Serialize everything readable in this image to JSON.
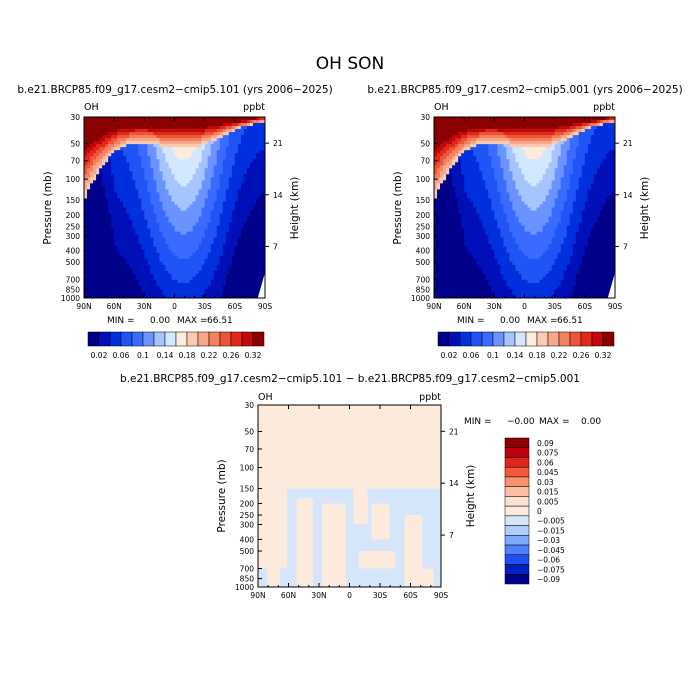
{
  "page_title": "OH SON",
  "colors": {
    "axis": "#000000",
    "deep_blue": "#00008B",
    "mid_blue": "#3A6BFF",
    "light_blue": "#CFE4FF",
    "neutral": "#FCEBDD",
    "light_red": "#F8B79C",
    "deep_red": "#8B0000"
  },
  "chart_data": [
    {
      "type": "heatmap",
      "id": "p1",
      "title": "b.e21.BRCP85.f09_g17.cesm2−cmip5.101 (yrs 2006−2025)",
      "variable_label": "OH",
      "units_label": "ppbt",
      "ylabel": "Pressure (mb)",
      "y2label": "Height (km)",
      "x_ticks": [
        "90N",
        "60N",
        "30N",
        "0",
        "30S",
        "60S",
        "90S"
      ],
      "x_range": [
        90,
        -90
      ],
      "y_ticks": [
        30,
        50,
        70,
        100,
        150,
        200,
        250,
        300,
        400,
        500,
        700,
        850,
        1000
      ],
      "y_range": [
        30,
        1000
      ],
      "y_scale": "log",
      "y2_ticks": [
        "21",
        "14",
        "7"
      ],
      "stats": {
        "min_label": "MIN =",
        "min_value": "0.00",
        "max_label": "MAX =",
        "max_value": "66.51"
      },
      "levels": [
        0.02,
        0.04,
        0.06,
        0.08,
        0.1,
        0.12,
        0.14,
        0.16,
        0.18,
        0.2,
        0.22,
        0.24,
        0.26,
        0.28,
        0.3,
        0.32
      ],
      "colorbar_labels": [
        "0.02",
        "0.06",
        "0.1",
        "0.14",
        "0.18",
        "0.22",
        "0.26",
        "0.32"
      ],
      "colors": [
        "#00008B",
        "#0010B8",
        "#0030DD",
        "#1F55F5",
        "#3A6BFF",
        "#6B93FF",
        "#A6C4FF",
        "#D3E7FF",
        "#FDEBDD",
        "#FBCAB2",
        "#F7A78A",
        "#F3805F",
        "#EC5638",
        "#E0291A",
        "#C4070B",
        "#8B0000"
      ]
    },
    {
      "type": "heatmap",
      "id": "p2",
      "title": "b.e21.BRCP85.f09_g17.cesm2−cmip5.001 (yrs 2006−2025)",
      "variable_label": "OH",
      "units_label": "ppbt",
      "ylabel": "Pressure (mb)",
      "y2label": "Height (km)",
      "x_ticks": [
        "90N",
        "60N",
        "30N",
        "0",
        "30S",
        "60S",
        "90S"
      ],
      "x_range": [
        90,
        -90
      ],
      "y_ticks": [
        30,
        50,
        70,
        100,
        150,
        200,
        250,
        300,
        400,
        500,
        700,
        850,
        1000
      ],
      "y_range": [
        30,
        1000
      ],
      "y_scale": "log",
      "y2_ticks": [
        "21",
        "14",
        "7"
      ],
      "stats": {
        "min_label": "MIN =",
        "min_value": "0.00",
        "max_label": "MAX =",
        "max_value": "66.51"
      },
      "levels": [
        0.02,
        0.04,
        0.06,
        0.08,
        0.1,
        0.12,
        0.14,
        0.16,
        0.18,
        0.2,
        0.22,
        0.24,
        0.26,
        0.28,
        0.3,
        0.32
      ],
      "colorbar_labels": [
        "0.02",
        "0.06",
        "0.1",
        "0.14",
        "0.18",
        "0.22",
        "0.26",
        "0.32"
      ],
      "colors": [
        "#00008B",
        "#0010B8",
        "#0030DD",
        "#1F55F5",
        "#3A6BFF",
        "#6B93FF",
        "#A6C4FF",
        "#D3E7FF",
        "#FDEBDD",
        "#FBCAB2",
        "#F7A78A",
        "#F3805F",
        "#EC5638",
        "#E0291A",
        "#C4070B",
        "#8B0000"
      ]
    },
    {
      "type": "heatmap",
      "id": "p3",
      "title": "b.e21.BRCP85.f09_g17.cesm2−cmip5.101 − b.e21.BRCP85.f09_g17.cesm2−cmip5.001",
      "variable_label": "OH",
      "units_label": "ppbt",
      "ylabel": "Pressure (mb)",
      "y2label": "Height (km)",
      "x_ticks": [
        "90N",
        "60N",
        "30N",
        "0",
        "30S",
        "60S",
        "90S"
      ],
      "x_range": [
        90,
        -90
      ],
      "y_ticks": [
        30,
        50,
        70,
        100,
        150,
        200,
        250,
        300,
        400,
        500,
        700,
        850,
        1000
      ],
      "y_range": [
        30,
        1000
      ],
      "y_scale": "log",
      "y2_ticks": [
        "21",
        "14",
        "7"
      ],
      "stats": {
        "min_label": "MIN =",
        "min_value": "−0.00",
        "max_label": "MAX =",
        "max_value": "0.00"
      },
      "colorbar_labels": [
        "0.09",
        "0.075",
        "0.06",
        "0.045",
        "0.03",
        "0.015",
        "0.005",
        "0",
        "−0.005",
        "−0.015",
        "−0.03",
        "−0.045",
        "−0.06",
        "−0.075",
        "−0.09"
      ],
      "colors": [
        "#8B0000",
        "#C00010",
        "#E0261A",
        "#F25A3A",
        "#F7916F",
        "#FBBFA3",
        "#FCE0CE",
        "#FCEBDD",
        "#D5E6FB",
        "#B0CCFA",
        "#7FA8FF",
        "#4F7FFF",
        "#2050F0",
        "#0020C0",
        "#00008B"
      ]
    }
  ]
}
